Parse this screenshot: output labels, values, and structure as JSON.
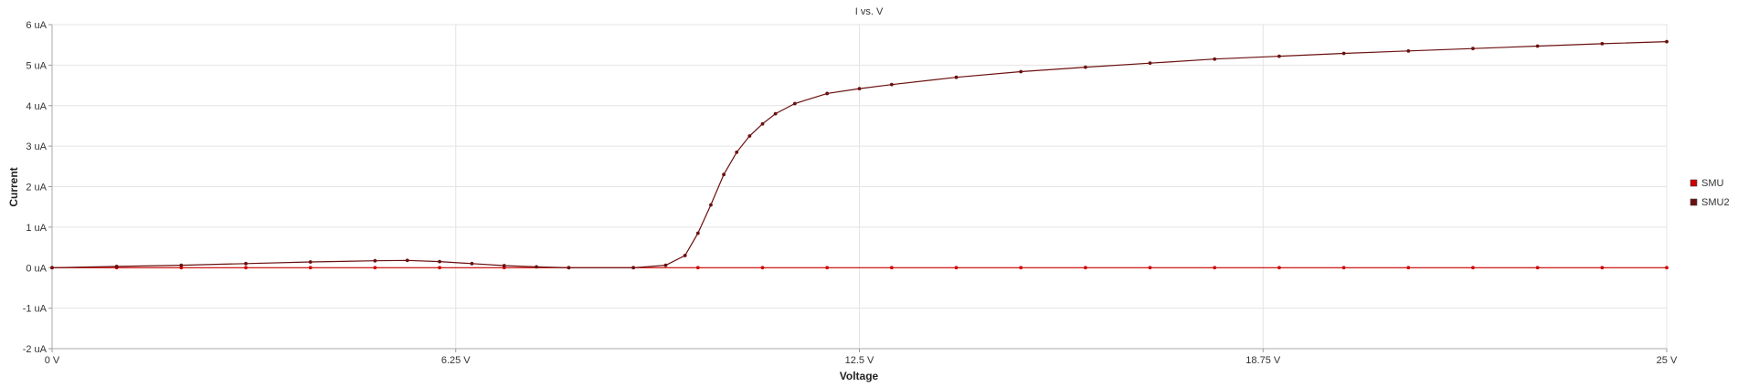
{
  "chart_data": {
    "type": "line",
    "title": "I vs. V",
    "xlabel": "Voltage",
    "ylabel": "Current",
    "x_unit": "V",
    "y_unit": "uA",
    "xlim": [
      0,
      25
    ],
    "ylim": [
      -2,
      6
    ],
    "x_ticks": [
      0,
      6.25,
      12.5,
      18.75,
      25
    ],
    "x_tick_labels": [
      "0 V",
      "6.25 V",
      "12.5 V",
      "18.75 V",
      "25 V"
    ],
    "y_ticks": [
      -2,
      -1,
      0,
      1,
      2,
      3,
      4,
      5,
      6
    ],
    "y_tick_labels": [
      "-2 uA",
      "-1 uA",
      "0 uA",
      "1 uA",
      "2 uA",
      "3 uA",
      "4 uA",
      "5 uA",
      "6 uA"
    ],
    "grid": true,
    "legend_position": "right",
    "series": [
      {
        "name": "SMU",
        "color": "#cc0000",
        "x": [
          0,
          1,
          2,
          3,
          4,
          5,
          6,
          7,
          8,
          9,
          10,
          11,
          12,
          13,
          14,
          15,
          16,
          17,
          18,
          19,
          20,
          21,
          22,
          23,
          24,
          25
        ],
        "values": [
          0,
          0,
          0,
          0,
          0,
          0,
          0,
          0,
          0,
          0,
          0,
          0,
          0,
          0,
          0,
          0,
          0,
          0,
          0,
          0,
          0,
          0,
          0,
          0,
          0,
          0
        ]
      },
      {
        "name": "SMU2",
        "color": "#6b0f0f",
        "x": [
          0,
          1,
          2,
          3,
          4,
          5,
          5.5,
          6,
          6.5,
          7,
          7.5,
          8,
          9,
          9.5,
          9.8,
          10,
          10.2,
          10.4,
          10.6,
          10.8,
          11,
          11.2,
          11.5,
          12,
          12.5,
          13,
          14,
          15,
          16,
          17,
          18,
          19,
          20,
          21,
          22,
          23,
          24,
          25
        ],
        "values": [
          0,
          0.03,
          0.06,
          0.1,
          0.14,
          0.17,
          0.18,
          0.15,
          0.1,
          0.05,
          0.02,
          0,
          0,
          0.06,
          0.3,
          0.85,
          1.55,
          2.3,
          2.85,
          3.25,
          3.55,
          3.8,
          4.05,
          4.3,
          4.42,
          4.52,
          4.7,
          4.84,
          4.95,
          5.05,
          5.15,
          5.22,
          5.29,
          5.35,
          5.41,
          5.47,
          5.53,
          5.58
        ]
      }
    ]
  }
}
